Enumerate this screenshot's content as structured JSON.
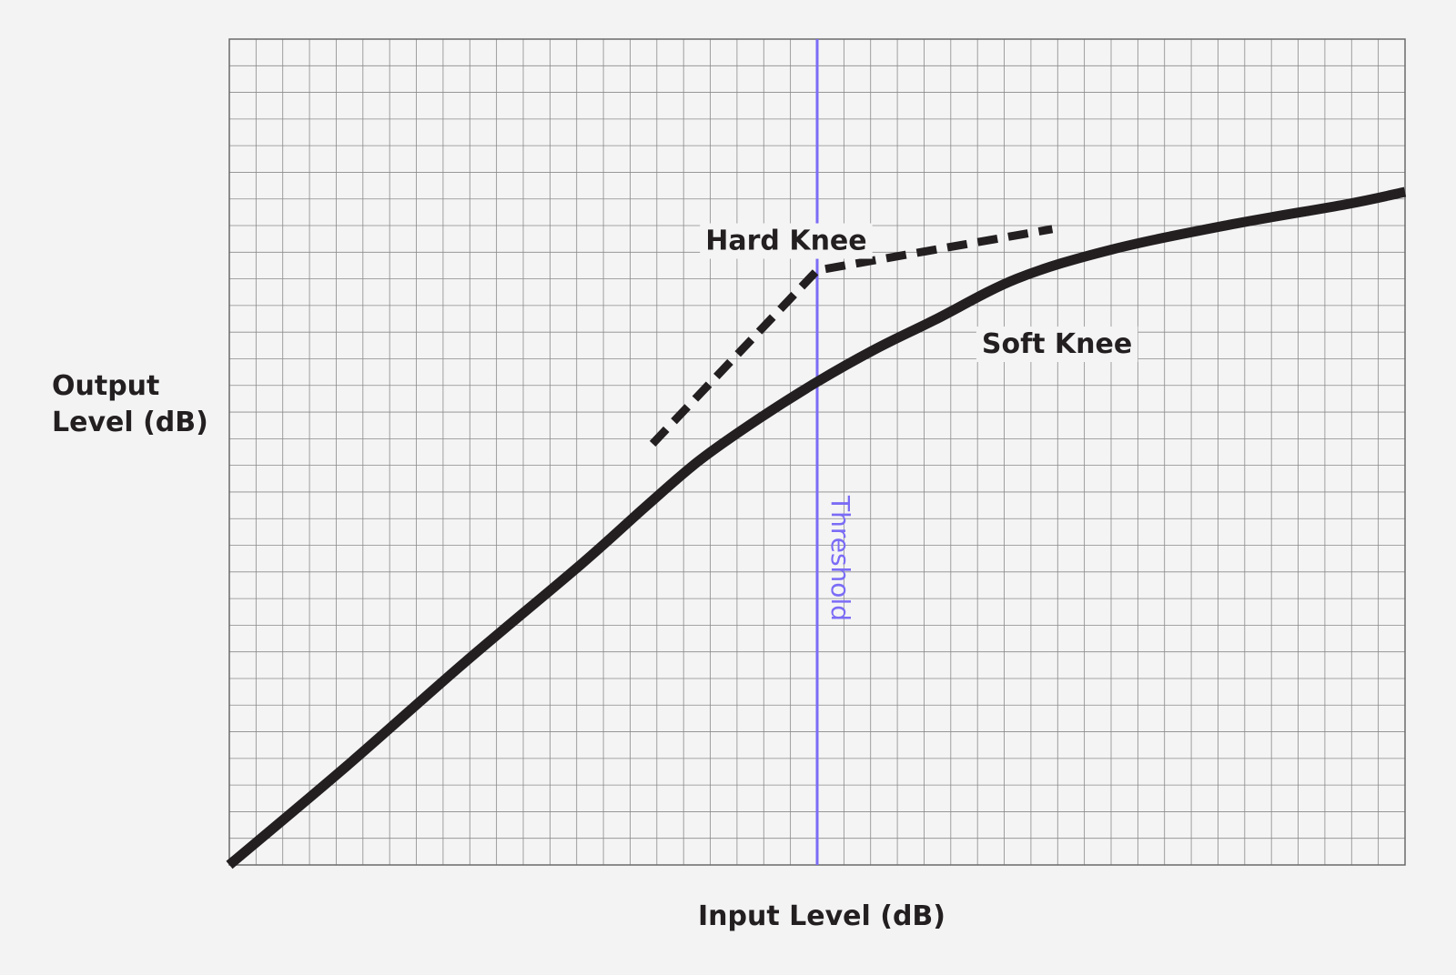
{
  "chart_data": {
    "type": "line",
    "title": "",
    "xlabel": "Input Level (dB)",
    "ylabel_lines": [
      "Output",
      "Level (dB)"
    ],
    "xlim": [
      0,
      100
    ],
    "ylim": [
      0,
      100
    ],
    "grid": true,
    "threshold": {
      "label": "Threshold",
      "x": 50,
      "color": "#7b6cf6"
    },
    "series": [
      {
        "name": "Soft Knee",
        "style": "solid",
        "color": "#231f20",
        "x": [
          0,
          10,
          20,
          30,
          35.5,
          40,
          45,
          50,
          55,
          60,
          67,
          75,
          85,
          95,
          100
        ],
        "y": [
          0,
          12,
          24.5,
          36.5,
          43.5,
          49,
          54,
          58.5,
          62.5,
          66,
          71,
          74.5,
          77.5,
          80,
          81.5
        ]
      },
      {
        "name": "Hard Knee",
        "style": "dashed",
        "color": "#231f20",
        "x": [
          36,
          50,
          70
        ],
        "y": [
          51,
          72,
          77
        ]
      }
    ],
    "annotations": [
      {
        "text": "Hard Knee",
        "x": 40.5,
        "y": 74.5
      },
      {
        "text": "Soft Knee",
        "x": 64,
        "y": 62
      }
    ]
  }
}
